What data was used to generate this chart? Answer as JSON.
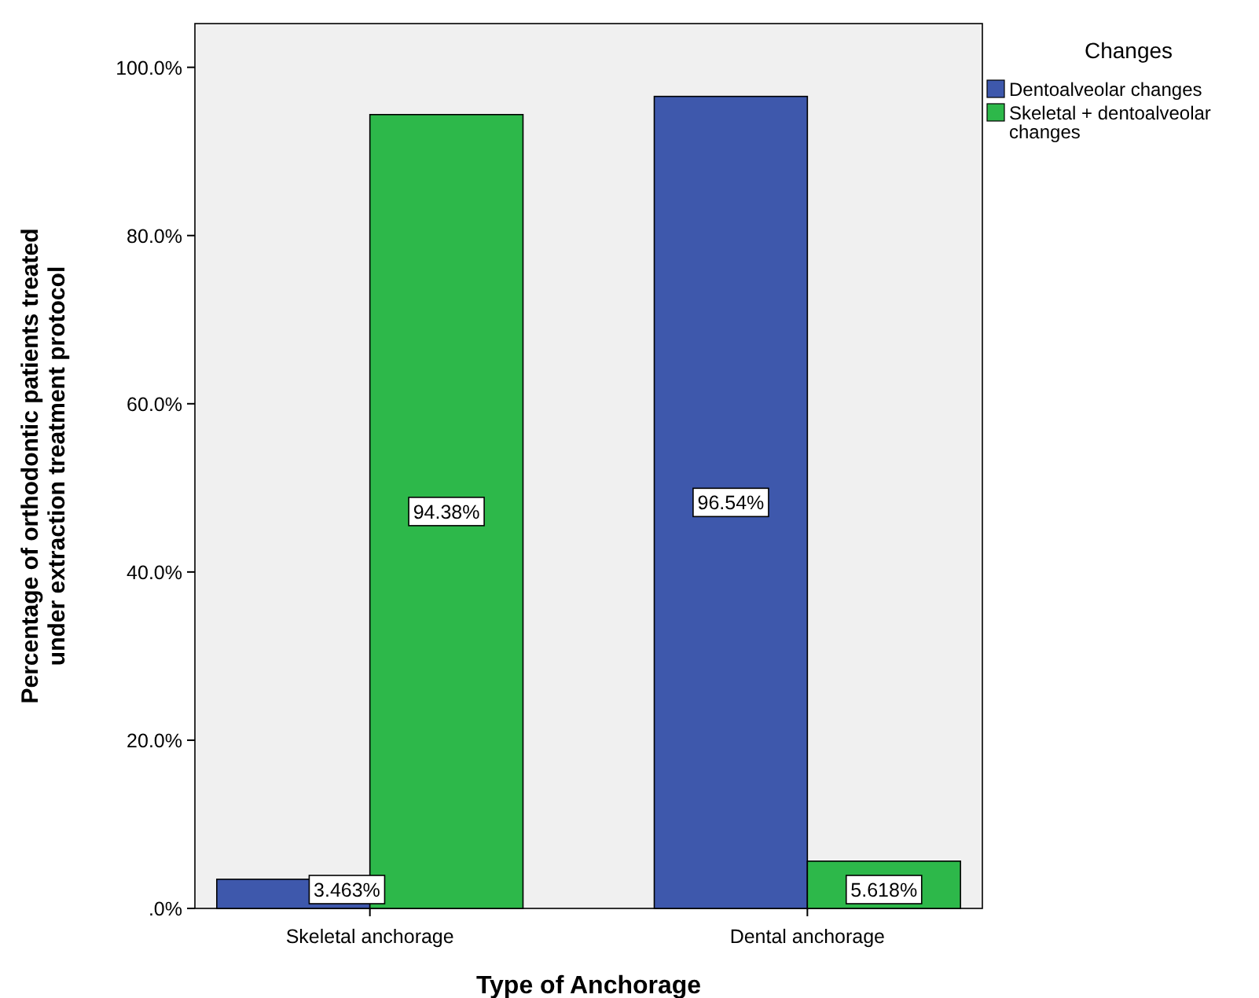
{
  "chart_data": {
    "type": "bar",
    "xlabel": "Type of Anchorage",
    "ylabel": "Percentage of orthodontic patients treated under extraction treatment protocol",
    "legend_title": "Changes",
    "legend": "top right",
    "categories": [
      "Skeletal anchorage",
      "Dental anchorage"
    ],
    "series": [
      {
        "name": "Dentoalveolar changes",
        "color": "#3e58ac",
        "values": [
          3.463,
          96.54
        ],
        "value_labels": [
          "3.463%",
          "96.54%"
        ]
      },
      {
        "name": "Skeletal + dentoalveolar changes",
        "color": "#2db84a",
        "values": [
          94.38,
          5.618
        ],
        "value_labels": [
          "94.38%",
          "5.618%"
        ]
      }
    ],
    "ylim": [
      0,
      105.2
    ],
    "yticks": [
      {
        "value": 0,
        "label": ".0%"
      },
      {
        "value": 20,
        "label": "20.0%"
      },
      {
        "value": 40,
        "label": "40.0%"
      },
      {
        "value": 60,
        "label": "60.0%"
      },
      {
        "value": 80,
        "label": "80.0%"
      },
      {
        "value": 100,
        "label": "100.0%"
      }
    ],
    "grid": false
  }
}
